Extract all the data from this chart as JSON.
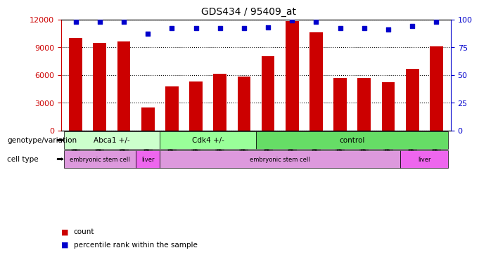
{
  "title": "GDS434 / 95409_at",
  "samples": [
    "GSM9269",
    "GSM9270",
    "GSM9271",
    "GSM9283",
    "GSM9284",
    "GSM9278",
    "GSM9279",
    "GSM9280",
    "GSM9272",
    "GSM9273",
    "GSM9274",
    "GSM9275",
    "GSM9276",
    "GSM9277",
    "GSM9281",
    "GSM9282"
  ],
  "counts": [
    10000,
    9500,
    9600,
    2500,
    4800,
    5300,
    6100,
    5800,
    8000,
    11800,
    10600,
    5700,
    5700,
    5200,
    6700,
    9100
  ],
  "percentiles": [
    98,
    98,
    98,
    87,
    92,
    92,
    92,
    92,
    93,
    99,
    98,
    92,
    92,
    91,
    94,
    98
  ],
  "ylim_left": [
    0,
    12000
  ],
  "ylim_right": [
    0,
    100
  ],
  "yticks_left": [
    0,
    3000,
    6000,
    9000,
    12000
  ],
  "yticks_right": [
    0,
    25,
    50,
    75,
    100
  ],
  "bar_color": "#cc0000",
  "dot_color": "#0000cc",
  "genotype_groups": [
    {
      "label": "Abca1 +/-",
      "start": 0,
      "end": 4,
      "color": "#ccffcc"
    },
    {
      "label": "Cdk4 +/-",
      "start": 4,
      "end": 8,
      "color": "#99ff99"
    },
    {
      "label": "control",
      "start": 8,
      "end": 16,
      "color": "#66dd66"
    }
  ],
  "celltype_groups": [
    {
      "label": "embryonic stem cell",
      "start": 0,
      "end": 3,
      "color": "#dd99dd"
    },
    {
      "label": "liver",
      "start": 3,
      "end": 4,
      "color": "#ee66ee"
    },
    {
      "label": "embryonic stem cell",
      "start": 4,
      "end": 14,
      "color": "#dd99dd"
    },
    {
      "label": "liver",
      "start": 14,
      "end": 16,
      "color": "#ee66ee"
    }
  ],
  "background_color": "#ffffff",
  "legend_count_color": "#cc0000",
  "legend_pct_color": "#0000cc",
  "geno_label": "genotype/variation",
  "cell_label": "cell type"
}
